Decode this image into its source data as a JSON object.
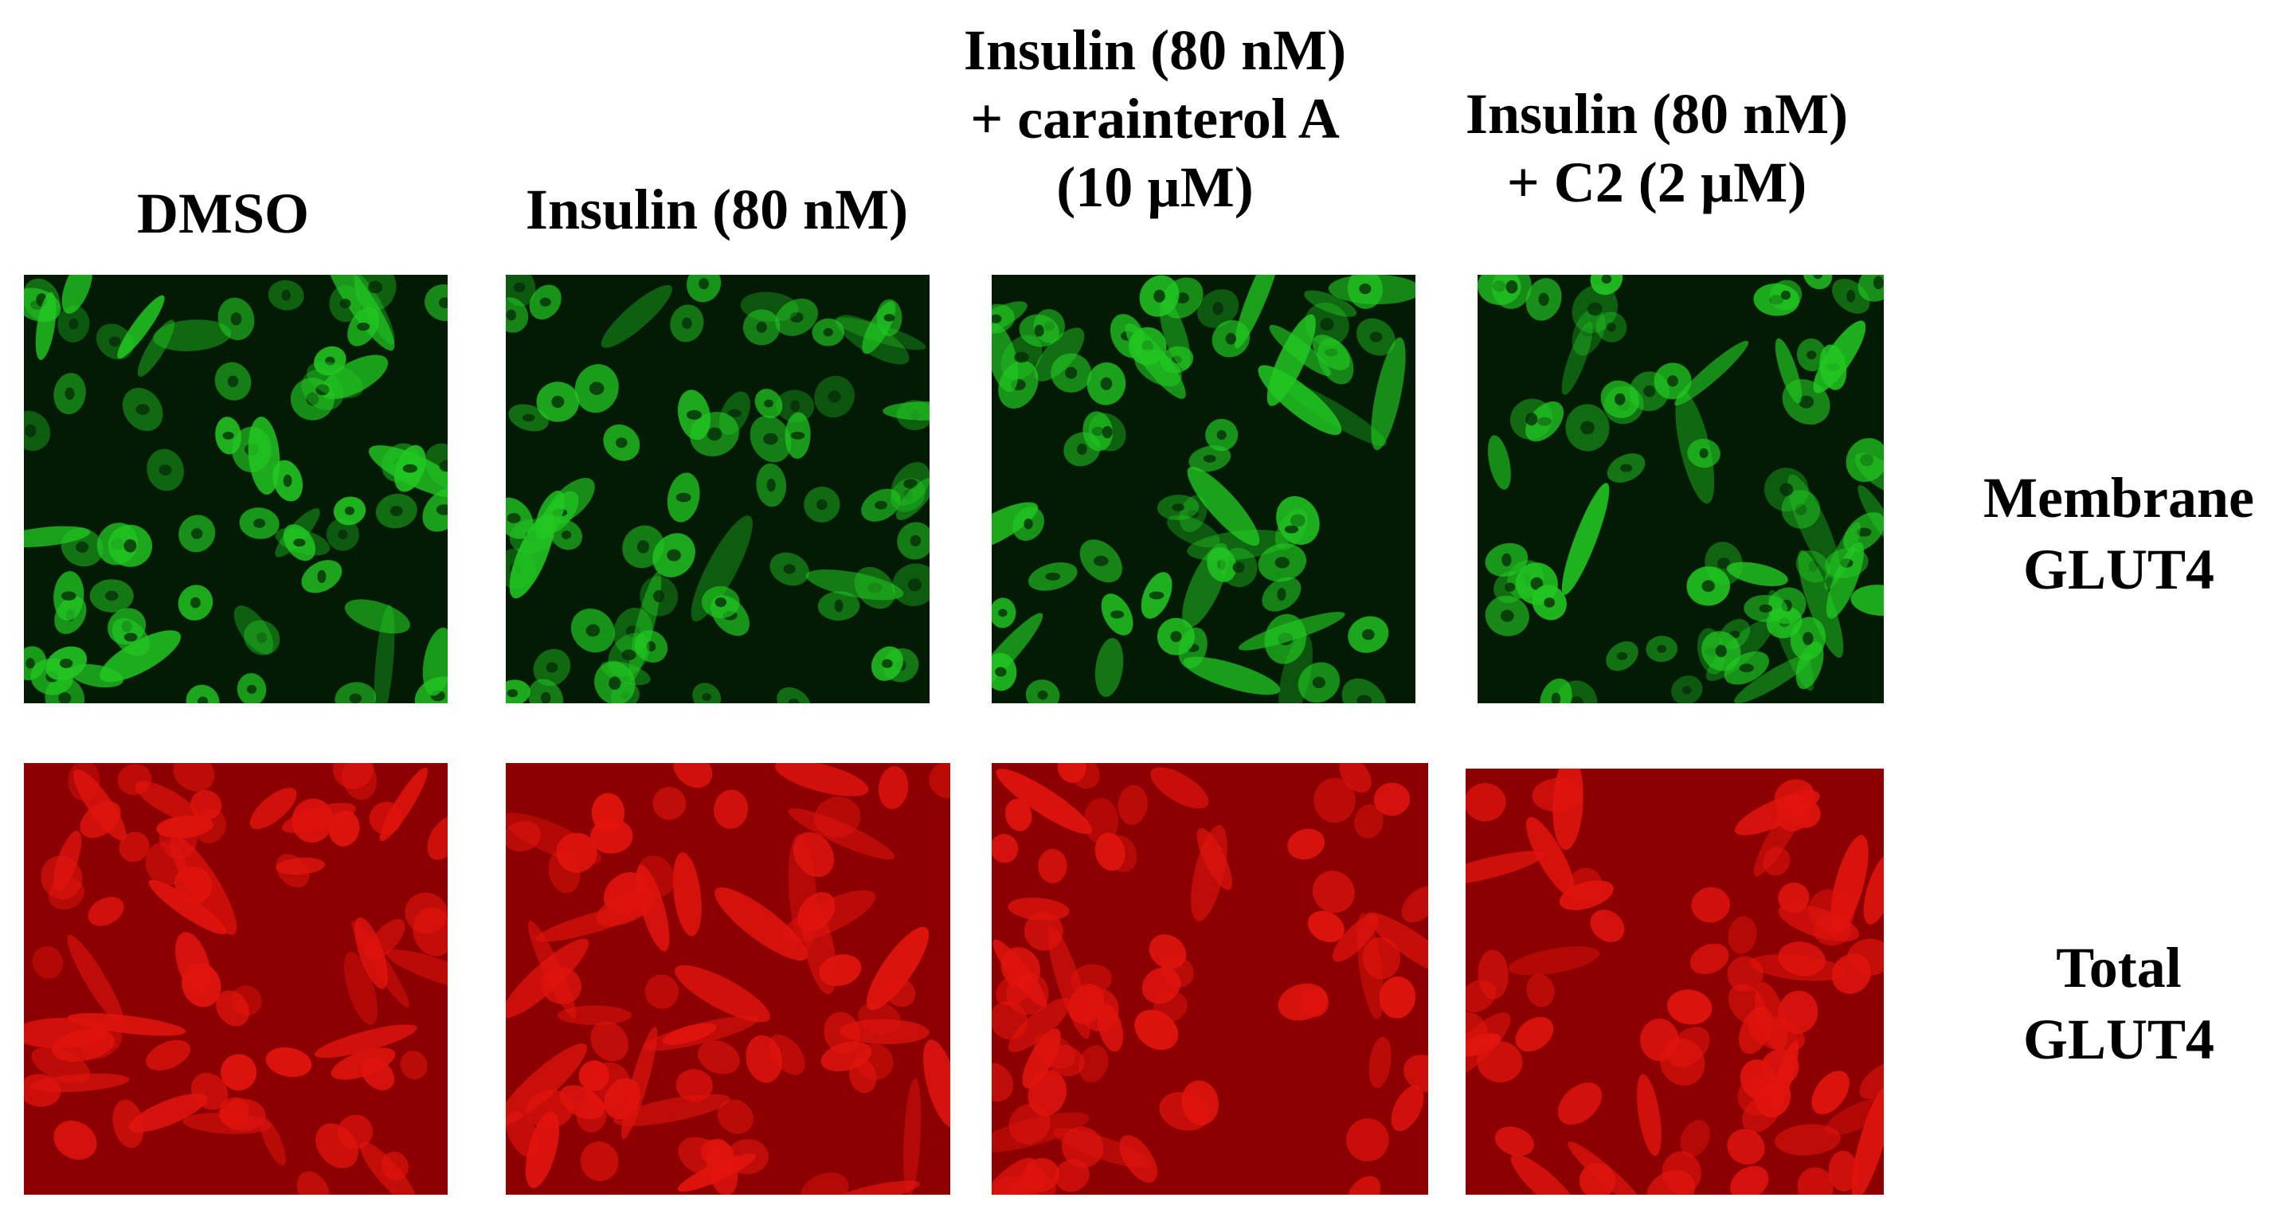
{
  "columns": [
    {
      "label": "DMSO"
    },
    {
      "label": "Insulin (80 nM)"
    },
    {
      "label": "Insulin (80 nM)\n+ carainterol A\n(10 µM)"
    },
    {
      "label": "Insulin (80 nM)\n+ C2 (2 µM)"
    }
  ],
  "rows": [
    {
      "label": "Membrane\nGLUT4",
      "channel_color": "#22c722"
    },
    {
      "label": "Total\nGLUT4",
      "channel_color": "#e0140e"
    }
  ]
}
